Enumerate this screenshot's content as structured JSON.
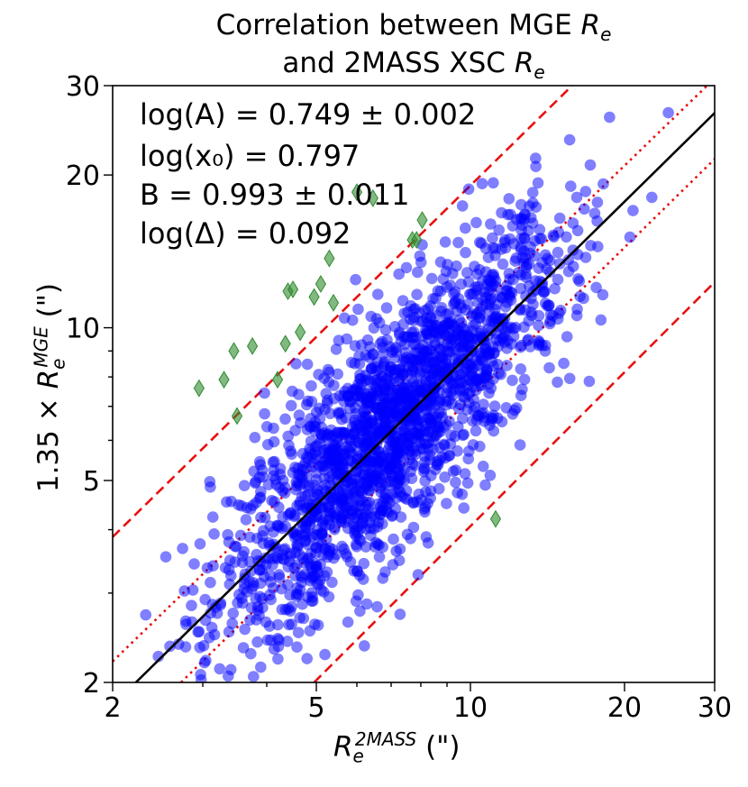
{
  "chart_data": {
    "type": "scatter",
    "title_line1": "Correlation between MGE",
    "title_line1_symbol": "R",
    "title_line1_sub": "e",
    "title_line2": "and 2MASS XSC",
    "title_line2_symbol": "R",
    "title_line2_sub": "e",
    "xlabel_symbol": "R",
    "xlabel_sub": "e",
    "xlabel_sup": "2MASS",
    "xlabel_unit": "(\")",
    "ylabel_prefix": "1.35 × ",
    "ylabel_symbol": "R",
    "ylabel_sub": "e",
    "ylabel_sup": "MGE",
    "ylabel_unit": "(\")",
    "xscale": "log",
    "yscale": "log",
    "xlim": [
      2,
      30
    ],
    "ylim": [
      2,
      30
    ],
    "xticks": [
      2,
      5,
      10,
      20,
      30
    ],
    "xtick_labels": [
      "2",
      "5",
      "10",
      "20",
      "30"
    ],
    "yticks": [
      2,
      5,
      10,
      20,
      30
    ],
    "ytick_labels": [
      "2",
      "5",
      "10",
      "20",
      "30"
    ],
    "grid": false,
    "annotations": [
      "log(A) = 0.749 ± 0.002",
      "log(x₀) = 0.797",
      "B = 0.993 ± 0.011",
      "log(Δ) = 0.092"
    ],
    "fit": {
      "log_A": 0.749,
      "log_x0": 0.797,
      "B": 0.993,
      "log_delta": 0.092
    },
    "series": [
      {
        "kind": "fit-line",
        "color": "#000000",
        "points": [
          [
            2.22,
            2.0
          ],
          [
            30,
            26.5
          ]
        ]
      },
      {
        "kind": "dotted-band-upper",
        "color": "#e81010",
        "points": [
          [
            2.0,
            2.2
          ],
          [
            29,
            30
          ]
        ]
      },
      {
        "kind": "dotted-band-lower",
        "color": "#e81010",
        "points": [
          [
            2.72,
            2.0
          ],
          [
            30,
            21.5
          ]
        ]
      },
      {
        "kind": "dashed-band-upper",
        "color": "#e81010",
        "points": [
          [
            2.0,
            3.87
          ],
          [
            15.8,
            30
          ]
        ]
      },
      {
        "kind": "dashed-band-lower",
        "color": "#e81010",
        "points": [
          [
            4.95,
            2.0
          ],
          [
            30,
            12.3
          ]
        ]
      },
      {
        "kind": "points",
        "marker": "circle",
        "color": "#0000ff",
        "count": 2000,
        "trend_scatter_dex": 0.092,
        "x_range": [
          2.3,
          27
        ]
      },
      {
        "kind": "outliers",
        "marker": "diamond",
        "color": "#2e8b2e",
        "points": [
          [
            2.95,
            7.6
          ],
          [
            3.3,
            7.9
          ],
          [
            3.45,
            9.0
          ],
          [
            3.5,
            6.7
          ],
          [
            3.75,
            9.2
          ],
          [
            4.2,
            7.9
          ],
          [
            4.35,
            9.3
          ],
          [
            4.4,
            11.8
          ],
          [
            4.5,
            11.9
          ],
          [
            4.65,
            9.8
          ],
          [
            4.95,
            11.5
          ],
          [
            5.1,
            12.2
          ],
          [
            5.3,
            13.7
          ],
          [
            5.4,
            11.2
          ],
          [
            6.0,
            18.5
          ],
          [
            6.45,
            18.0
          ],
          [
            7.7,
            14.9
          ],
          [
            7.85,
            14.9
          ],
          [
            8.05,
            16.3
          ],
          [
            11.2,
            4.2
          ]
        ]
      }
    ]
  }
}
